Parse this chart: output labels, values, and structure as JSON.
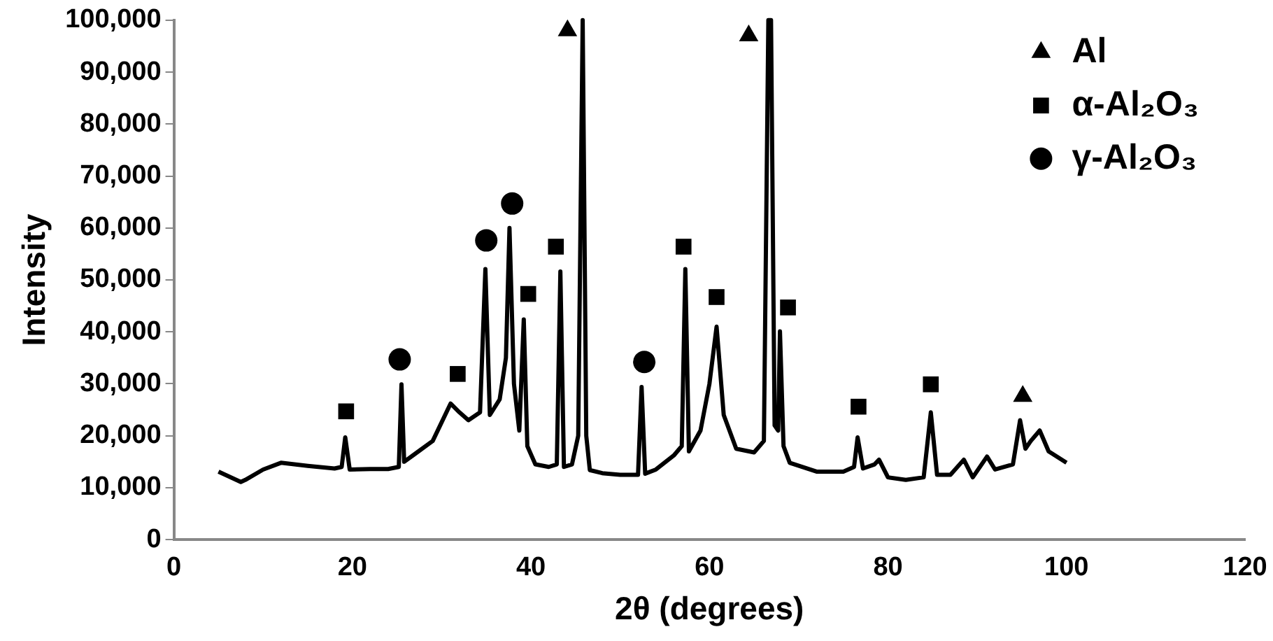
{
  "chart_data": {
    "type": "line",
    "xlabel": "2θ (degrees)",
    "ylabel": "Intensity",
    "xlim": [
      0,
      120
    ],
    "xticks": [
      0,
      20,
      40,
      60,
      80,
      100,
      120
    ],
    "ylim": [
      0,
      100000
    ],
    "yticks": [
      {
        "value": 0,
        "label": "0"
      },
      {
        "value": 10000,
        "label": "10,000"
      },
      {
        "value": 20000,
        "label": "20,000"
      },
      {
        "value": 30000,
        "label": "30,000"
      },
      {
        "value": 40000,
        "label": "40,000"
      },
      {
        "value": 50000,
        "label": "50,000"
      },
      {
        "value": 60000,
        "label": "60,000"
      },
      {
        "value": 70000,
        "label": "70,000"
      },
      {
        "value": 80000,
        "label": "80,000"
      },
      {
        "value": 90000,
        "label": "90,000"
      },
      {
        "value": 100000,
        "label": "100,000"
      }
    ],
    "grid": false,
    "legend": "top right",
    "line_style": "solid",
    "series": [
      {
        "color": "#000000",
        "marker": "none",
        "x": [
          5,
          7.5,
          8,
          10,
          12,
          15,
          18,
          18.8,
          19.2,
          19.7,
          22,
          24,
          25.2,
          25.5,
          25.8,
          27,
          29,
          31,
          32,
          33,
          34.3,
          34.9,
          35.4,
          36.5,
          37.2,
          37.6,
          38.1,
          38.7,
          39.2,
          39.6,
          40.5,
          42,
          42.9,
          43.3,
          43.7,
          44.6,
          45.3,
          45.8,
          46.2,
          46.6,
          48,
          50,
          52,
          52.4,
          52.8,
          54,
          56,
          56.9,
          57.3,
          57.7,
          59,
          60,
          60.8,
          61.6,
          63,
          65,
          66.1,
          66.6,
          66.9,
          67.3,
          67.7,
          67.9,
          68.3,
          69,
          72,
          75,
          76.2,
          76.6,
          77.2,
          78.5,
          79,
          80,
          82,
          84,
          84.8,
          85.5,
          87,
          88.5,
          89.5,
          91.1,
          92,
          94,
          94.8,
          95.4,
          96,
          97,
          98,
          100
        ],
        "values": [
          13100,
          11100,
          11500,
          13500,
          14800,
          14200,
          13700,
          14000,
          19700,
          13500,
          13600,
          13600,
          14000,
          29900,
          15000,
          16500,
          19000,
          26200,
          24500,
          23000,
          24500,
          52100,
          24000,
          27000,
          35000,
          60000,
          30000,
          21000,
          42400,
          18000,
          14500,
          14000,
          14500,
          51600,
          14000,
          14500,
          20000,
          100000,
          20000,
          13400,
          12800,
          12500,
          12500,
          29400,
          12700,
          13500,
          16200,
          18000,
          52100,
          17000,
          21000,
          30000,
          41000,
          24000,
          17500,
          16800,
          19000,
          100000,
          100000,
          22000,
          21000,
          40100,
          18000,
          14800,
          13100,
          13100,
          14000,
          19700,
          13700,
          14500,
          15400,
          12000,
          11500,
          12000,
          24500,
          12500,
          12500,
          15400,
          12000,
          16000,
          13500,
          14500,
          23000,
          17500,
          19000,
          21000,
          17000,
          14800
        ]
      },
      {
        "type": "scatter",
        "name": "Al",
        "color": "#000000",
        "marker": "triangle",
        "x": [
          44.1,
          64.4,
          95.1
        ],
        "values": [
          98000,
          97000,
          27600
        ]
      },
      {
        "type": "scatter",
        "name": "α-Al₂O₃",
        "color": "#000000",
        "marker": "square",
        "x": [
          19.3,
          31.8,
          39.7,
          42.8,
          57.1,
          60.8,
          68.8,
          76.7,
          84.8
        ],
        "values": [
          24700,
          31900,
          47300,
          56400,
          56400,
          46700,
          44700,
          25600,
          29900
        ]
      },
      {
        "type": "scatter",
        "name": "γ-Al₂O₃",
        "color": "#000000",
        "marker": "circle",
        "x": [
          25.3,
          35,
          37.9,
          52.7
        ],
        "values": [
          34700,
          57600,
          64700,
          34200
        ]
      }
    ]
  }
}
